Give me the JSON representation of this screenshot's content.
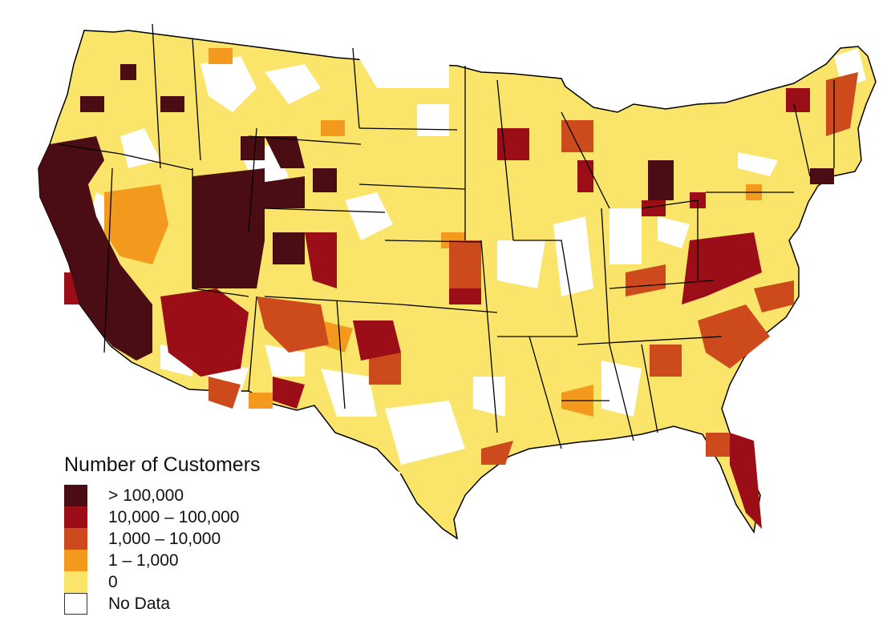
{
  "legend": {
    "title": "Number of Customers",
    "items": [
      {
        "label": "> 100,000",
        "color": "#4a0d13"
      },
      {
        "label": "10,000 – 100,000",
        "color": "#9b0d17"
      },
      {
        "label": "1,000 – 10,000",
        "color": "#cc4a1c"
      },
      {
        "label": "1 – 1,000",
        "color": "#f39a1e"
      },
      {
        "label": "0",
        "color": "#fbe46a"
      },
      {
        "label": "No Data",
        "color": "#ffffff"
      }
    ]
  },
  "colors": {
    "state_border": "#000000",
    "no_data_border": "#333333"
  }
}
